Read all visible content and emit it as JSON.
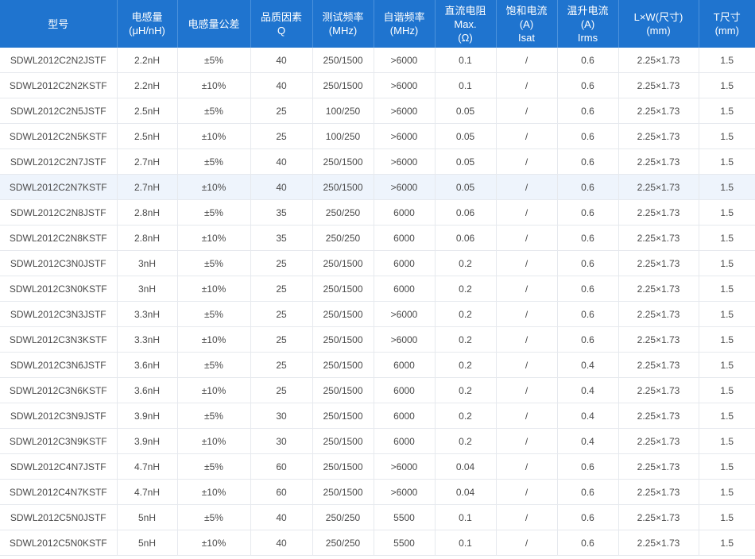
{
  "table": {
    "headers": [
      [
        "型号"
      ],
      [
        "电感量",
        "(μH/nH)"
      ],
      [
        "电感量公差"
      ],
      [
        "品质因素",
        "Q"
      ],
      [
        "测试频率",
        "(MHz)"
      ],
      [
        "自谐频率",
        "(MHz)"
      ],
      [
        "直流电阻",
        "Max.",
        "(Ω)"
      ],
      [
        "饱和电流",
        "(A)",
        "Isat"
      ],
      [
        "温升电流",
        "(A)",
        "Irms"
      ],
      [
        "L×W(尺寸)",
        "(mm)"
      ],
      [
        "T尺寸",
        "(mm)"
      ]
    ],
    "rows": [
      [
        "SDWL2012C2N2JSTF",
        "2.2nH",
        "±5%",
        "40",
        "250/1500",
        ">6000",
        "0.1",
        "/",
        "0.6",
        "2.25×1.73",
        "1.5"
      ],
      [
        "SDWL2012C2N2KSTF",
        "2.2nH",
        "±10%",
        "40",
        "250/1500",
        ">6000",
        "0.1",
        "/",
        "0.6",
        "2.25×1.73",
        "1.5"
      ],
      [
        "SDWL2012C2N5JSTF",
        "2.5nH",
        "±5%",
        "25",
        "100/250",
        ">6000",
        "0.05",
        "/",
        "0.6",
        "2.25×1.73",
        "1.5"
      ],
      [
        "SDWL2012C2N5KSTF",
        "2.5nH",
        "±10%",
        "25",
        "100/250",
        ">6000",
        "0.05",
        "/",
        "0.6",
        "2.25×1.73",
        "1.5"
      ],
      [
        "SDWL2012C2N7JSTF",
        "2.7nH",
        "±5%",
        "40",
        "250/1500",
        ">6000",
        "0.05",
        "/",
        "0.6",
        "2.25×1.73",
        "1.5"
      ],
      [
        "SDWL2012C2N7KSTF",
        "2.7nH",
        "±10%",
        "40",
        "250/1500",
        ">6000",
        "0.05",
        "/",
        "0.6",
        "2.25×1.73",
        "1.5"
      ],
      [
        "SDWL2012C2N8JSTF",
        "2.8nH",
        "±5%",
        "35",
        "250/250",
        "6000",
        "0.06",
        "/",
        "0.6",
        "2.25×1.73",
        "1.5"
      ],
      [
        "SDWL2012C2N8KSTF",
        "2.8nH",
        "±10%",
        "35",
        "250/250",
        "6000",
        "0.06",
        "/",
        "0.6",
        "2.25×1.73",
        "1.5"
      ],
      [
        "SDWL2012C3N0JSTF",
        "3nH",
        "±5%",
        "25",
        "250/1500",
        "6000",
        "0.2",
        "/",
        "0.6",
        "2.25×1.73",
        "1.5"
      ],
      [
        "SDWL2012C3N0KSTF",
        "3nH",
        "±10%",
        "25",
        "250/1500",
        "6000",
        "0.2",
        "/",
        "0.6",
        "2.25×1.73",
        "1.5"
      ],
      [
        "SDWL2012C3N3JSTF",
        "3.3nH",
        "±5%",
        "25",
        "250/1500",
        ">6000",
        "0.2",
        "/",
        "0.6",
        "2.25×1.73",
        "1.5"
      ],
      [
        "SDWL2012C3N3KSTF",
        "3.3nH",
        "±10%",
        "25",
        "250/1500",
        ">6000",
        "0.2",
        "/",
        "0.6",
        "2.25×1.73",
        "1.5"
      ],
      [
        "SDWL2012C3N6JSTF",
        "3.6nH",
        "±5%",
        "25",
        "250/1500",
        "6000",
        "0.2",
        "/",
        "0.4",
        "2.25×1.73",
        "1.5"
      ],
      [
        "SDWL2012C3N6KSTF",
        "3.6nH",
        "±10%",
        "25",
        "250/1500",
        "6000",
        "0.2",
        "/",
        "0.4",
        "2.25×1.73",
        "1.5"
      ],
      [
        "SDWL2012C3N9JSTF",
        "3.9nH",
        "±5%",
        "30",
        "250/1500",
        "6000",
        "0.2",
        "/",
        "0.4",
        "2.25×1.73",
        "1.5"
      ],
      [
        "SDWL2012C3N9KSTF",
        "3.9nH",
        "±10%",
        "30",
        "250/1500",
        "6000",
        "0.2",
        "/",
        "0.4",
        "2.25×1.73",
        "1.5"
      ],
      [
        "SDWL2012C4N7JSTF",
        "4.7nH",
        "±5%",
        "60",
        "250/1500",
        ">6000",
        "0.04",
        "/",
        "0.6",
        "2.25×1.73",
        "1.5"
      ],
      [
        "SDWL2012C4N7KSTF",
        "4.7nH",
        "±10%",
        "60",
        "250/1500",
        ">6000",
        "0.04",
        "/",
        "0.6",
        "2.25×1.73",
        "1.5"
      ],
      [
        "SDWL2012C5N0JSTF",
        "5nH",
        "±5%",
        "40",
        "250/250",
        "5500",
        "0.1",
        "/",
        "0.6",
        "2.25×1.73",
        "1.5"
      ],
      [
        "SDWL2012C5N0KSTF",
        "5nH",
        "±10%",
        "40",
        "250/250",
        "5500",
        "0.1",
        "/",
        "0.6",
        "2.25×1.73",
        "1.5"
      ]
    ],
    "highlighted_row": 5
  },
  "colors": {
    "header_bg": "#1f74cf",
    "header_text": "#ffffff",
    "cell_text": "#4a4a4a",
    "row_highlight": "#eef4fc",
    "grid_line": "#e6e9ee"
  }
}
